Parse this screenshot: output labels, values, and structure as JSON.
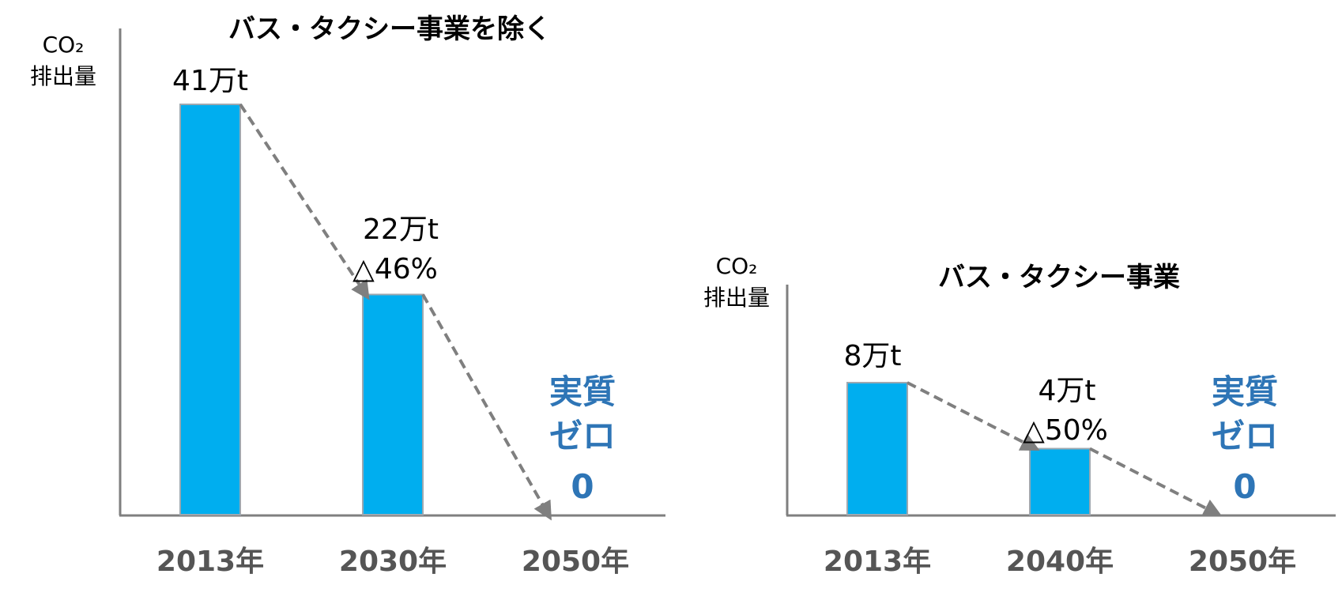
{
  "colors": {
    "bar": "#00AEEF",
    "bar_stroke": "#9EA8B0",
    "axis": "#7F7F7F",
    "arrow": "#7F7F7F",
    "zero_text": "#2E75B6",
    "tick_text": "#555555"
  },
  "chart_data": [
    {
      "type": "bar",
      "title": "バス・タクシー事業を除く",
      "ylabel_top": "CO₂",
      "ylabel_bottom": "排出量",
      "categories": [
        "2013年",
        "2030年",
        "2050年"
      ],
      "values": [
        41,
        22,
        0
      ],
      "unit": "万t",
      "data_labels": [
        "41万t",
        "22万t",
        ""
      ],
      "reduction_labels": [
        "",
        "△46%",
        ""
      ],
      "zero_label": [
        "実質",
        "ゼロ",
        "0"
      ],
      "ylim": [
        0,
        41
      ],
      "grid": false,
      "trend_arrows": "dashed"
    },
    {
      "type": "bar",
      "title": "バス・タクシー事業",
      "ylabel_top": "CO₂",
      "ylabel_bottom": "排出量",
      "categories": [
        "2013年",
        "2040年",
        "2050年"
      ],
      "values": [
        8,
        4,
        0
      ],
      "unit": "万t",
      "data_labels": [
        "8万t",
        "4万t",
        ""
      ],
      "reduction_labels": [
        "",
        "△50%",
        ""
      ],
      "zero_label": [
        "実質",
        "ゼロ",
        "0"
      ],
      "ylim": [
        0,
        8
      ],
      "grid": false,
      "trend_arrows": "dashed"
    }
  ]
}
